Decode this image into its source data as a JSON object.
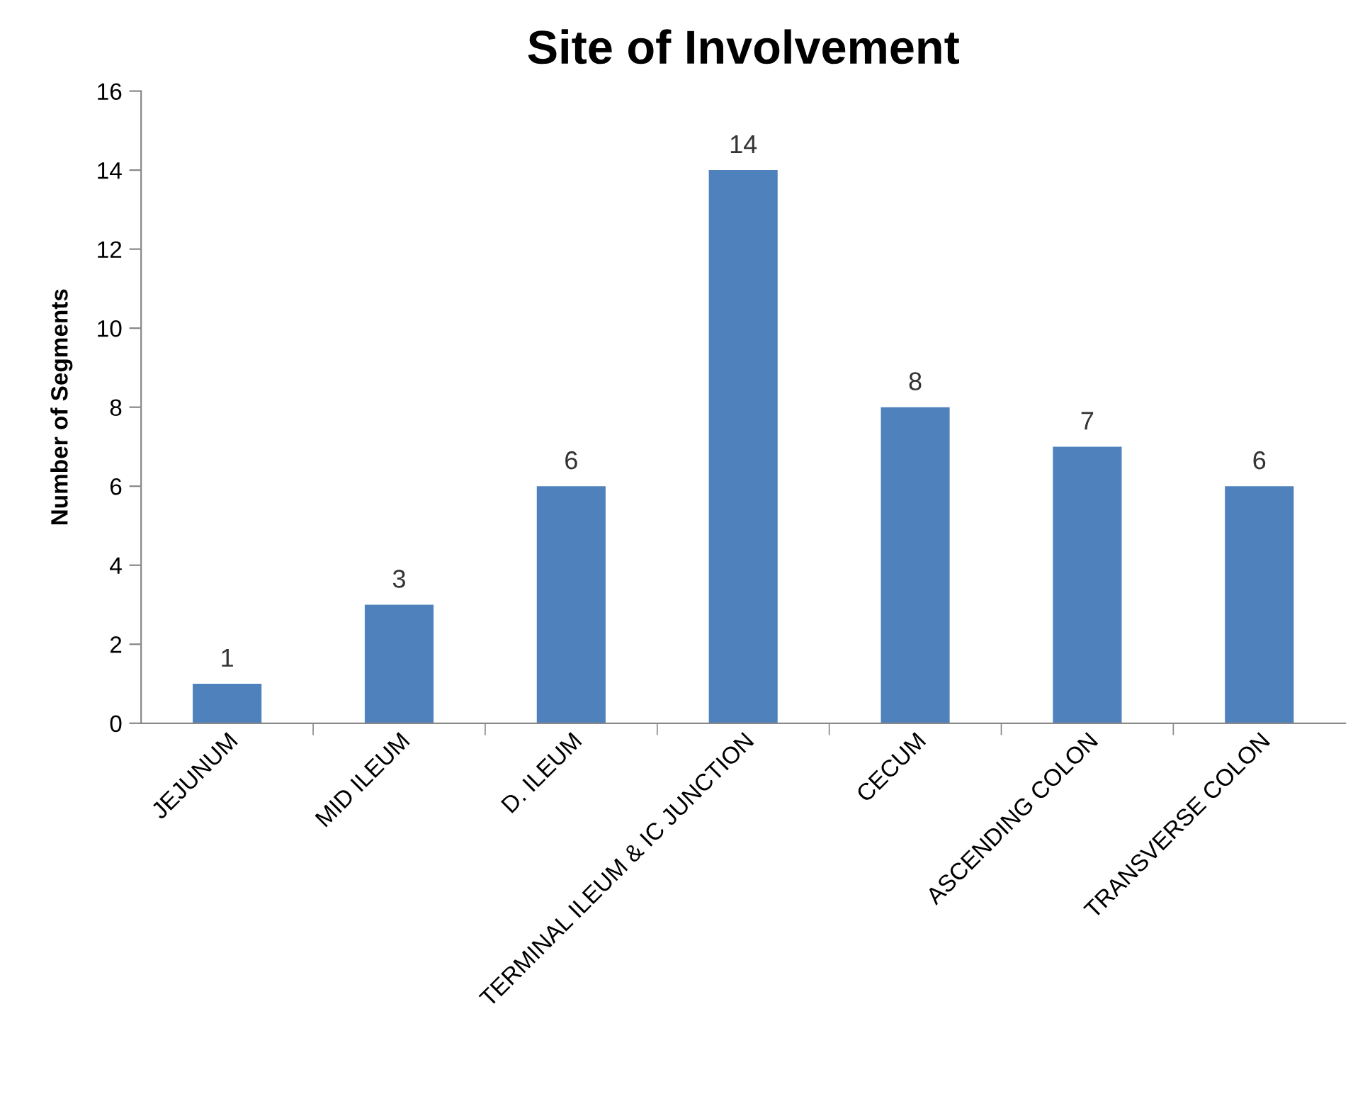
{
  "chart_data": {
    "type": "bar",
    "title": "Site of Involvement",
    "ylabel": "Number of Segments",
    "categories": [
      "JEJUNUM",
      "MID ILEUM",
      "D. ILEUM",
      "TERMINAL ILEUM & IC JUNCTION",
      "CECUM",
      "ASCENDING COLON",
      "TRANSVERSE COLON"
    ],
    "values": [
      1,
      3,
      6,
      14,
      8,
      7,
      6
    ],
    "color": "#4f81bd",
    "ylim": [
      0,
      16
    ],
    "yticks": [
      0,
      2,
      4,
      6,
      8,
      10,
      12,
      14,
      16
    ],
    "grid": false,
    "data_labels": true
  }
}
